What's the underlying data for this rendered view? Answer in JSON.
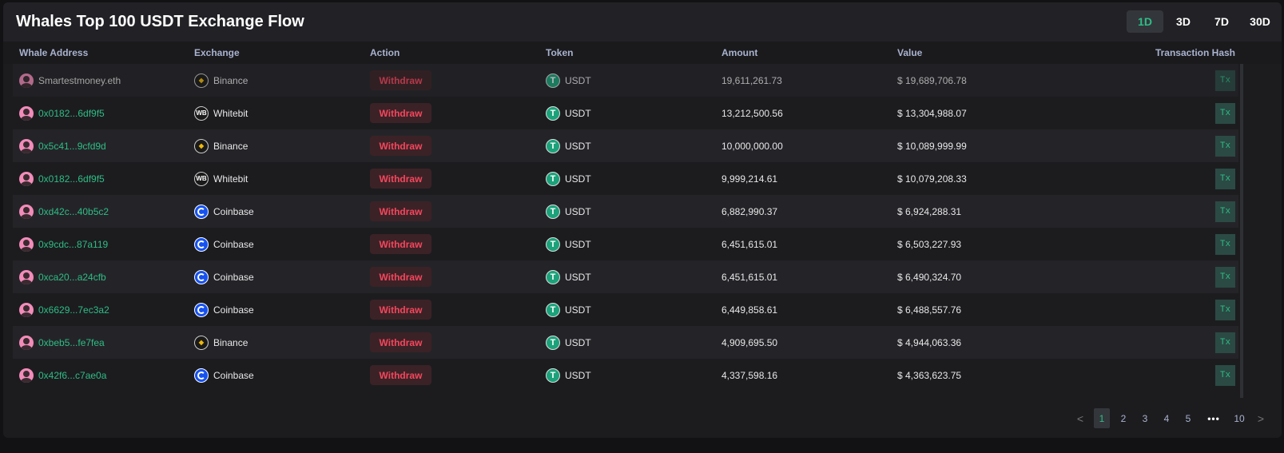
{
  "title": "Whales Top 100 USDT Exchange Flow",
  "ranges": [
    {
      "label": "1D",
      "active": true
    },
    {
      "label": "3D"
    },
    {
      "label": "7D"
    },
    {
      "label": "30D"
    }
  ],
  "columns": [
    "Whale Address",
    "Exchange",
    "Action",
    "Token",
    "Amount",
    "Value",
    "Transaction Hash"
  ],
  "rows": [
    {
      "address": "Smartestmoney.eth",
      "exchange": "Binance",
      "action": "Withdraw",
      "token": "USDT",
      "amount": "19,611,261.73",
      "value": "$ 19,689,706.78",
      "tx": "Tx"
    },
    {
      "address": "0x0182...6df9f5",
      "exchange": "Whitebit",
      "action": "Withdraw",
      "token": "USDT",
      "amount": "13,212,500.56",
      "value": "$ 13,304,988.07",
      "tx": "Tx"
    },
    {
      "address": "0x5c41...9cfd9d",
      "exchange": "Binance",
      "action": "Withdraw",
      "token": "USDT",
      "amount": "10,000,000.00",
      "value": "$ 10,089,999.99",
      "tx": "Tx"
    },
    {
      "address": "0x0182...6df9f5",
      "exchange": "Whitebit",
      "action": "Withdraw",
      "token": "USDT",
      "amount": "9,999,214.61",
      "value": "$ 10,079,208.33",
      "tx": "Tx"
    },
    {
      "address": "0xd42c...40b5c2",
      "exchange": "Coinbase",
      "action": "Withdraw",
      "token": "USDT",
      "amount": "6,882,990.37",
      "value": "$ 6,924,288.31",
      "tx": "Tx"
    },
    {
      "address": "0x9cdc...87a119",
      "exchange": "Coinbase",
      "action": "Withdraw",
      "token": "USDT",
      "amount": "6,451,615.01",
      "value": "$ 6,503,227.93",
      "tx": "Tx"
    },
    {
      "address": "0xca20...a24cfb",
      "exchange": "Coinbase",
      "action": "Withdraw",
      "token": "USDT",
      "amount": "6,451,615.01",
      "value": "$ 6,490,324.70",
      "tx": "Tx"
    },
    {
      "address": "0x6629...7ec3a2",
      "exchange": "Coinbase",
      "action": "Withdraw",
      "token": "USDT",
      "amount": "6,449,858.61",
      "value": "$ 6,488,557.76",
      "tx": "Tx"
    },
    {
      "address": "0xbeb5...fe7fea",
      "exchange": "Binance",
      "action": "Withdraw",
      "token": "USDT",
      "amount": "4,909,695.50",
      "value": "$ 4,944,063.36",
      "tx": "Tx"
    },
    {
      "address": "0x42f6...c7ae0a",
      "exchange": "Coinbase",
      "action": "Withdraw",
      "token": "USDT",
      "amount": "4,337,598.16",
      "value": "$ 4,363,623.75",
      "tx": "Tx"
    }
  ],
  "pagination": {
    "prev": "<",
    "pages": [
      "1",
      "2",
      "3",
      "4",
      "5"
    ],
    "ellipsis": "•••",
    "last": "10",
    "next": ">",
    "current": "1"
  },
  "colors": {
    "accent": "#2ebd85",
    "withdraw": "#f6465d",
    "background": "#1c1c1f"
  }
}
